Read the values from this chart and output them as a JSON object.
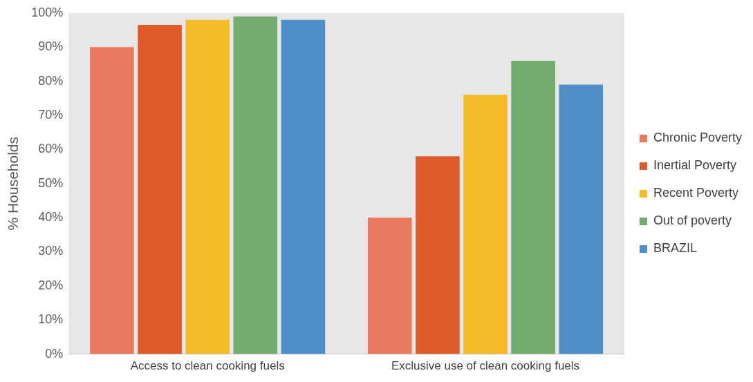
{
  "chart_data": {
    "type": "bar",
    "categories": [
      "Access to clean cooking fuels",
      "Exclusive use of clean cooking fuels"
    ],
    "ylabel": "% Households",
    "ylim": [
      0,
      100
    ],
    "yticks": [
      {
        "value": 0,
        "label": "0%"
      },
      {
        "value": 10,
        "label": "10%"
      },
      {
        "value": 20,
        "label": "20%"
      },
      {
        "value": 30,
        "label": "30%"
      },
      {
        "value": 40,
        "label": "40%"
      },
      {
        "value": 50,
        "label": "50%"
      },
      {
        "value": 60,
        "label": "60%"
      },
      {
        "value": 70,
        "label": "70%"
      },
      {
        "value": 80,
        "label": "80%"
      },
      {
        "value": 90,
        "label": "90%"
      },
      {
        "value": 100,
        "label": "100%"
      }
    ],
    "grid": false,
    "legend": "right",
    "series": [
      {
        "name": "Chronic Poverty",
        "color": "#e8795e",
        "values": [
          90,
          40
        ]
      },
      {
        "name": "Inertial Poverty",
        "color": "#e05a2b",
        "values": [
          96.5,
          58
        ]
      },
      {
        "name": "Recent Poverty",
        "color": "#f5bb2a",
        "values": [
          98,
          76
        ]
      },
      {
        "name": "Out of poverty",
        "color": "#74ab6f",
        "values": [
          99,
          86
        ]
      },
      {
        "name": "BRAZIL",
        "color": "#4f8fc9",
        "values": [
          98,
          79
        ]
      }
    ]
  }
}
